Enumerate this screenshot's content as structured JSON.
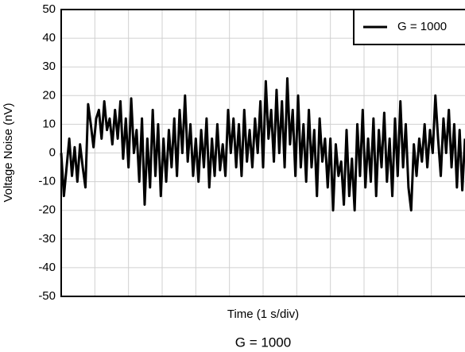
{
  "chart_data": {
    "type": "line",
    "xlabel": "Time (1 s/div)",
    "ylabel": "Voltage Noise (nV)",
    "caption": "G = 1000",
    "xlim": [
      0,
      150
    ],
    "xticks": [
      12.5,
      25,
      37.5,
      50,
      62.5,
      75,
      87.5,
      100,
      112.5,
      125,
      137.5
    ],
    "ylim": [
      -50,
      50
    ],
    "yticks": [
      -50,
      -40,
      -30,
      -20,
      -10,
      0,
      10,
      20,
      30,
      40,
      50
    ],
    "grid": true,
    "legend": "top-right",
    "x": [
      0,
      1,
      2,
      3,
      4,
      5,
      6,
      7,
      8,
      9,
      10,
      11,
      12,
      13,
      14,
      15,
      16,
      17,
      18,
      19,
      20,
      21,
      22,
      23,
      24,
      25,
      26,
      27,
      28,
      29,
      30,
      31,
      32,
      33,
      34,
      35,
      36,
      37,
      38,
      39,
      40,
      41,
      42,
      43,
      44,
      45,
      46,
      47,
      48,
      49,
      50,
      51,
      52,
      53,
      54,
      55,
      56,
      57,
      58,
      59,
      60,
      61,
      62,
      63,
      64,
      65,
      66,
      67,
      68,
      69,
      70,
      71,
      72,
      73,
      74,
      75,
      76,
      77,
      78,
      79,
      80,
      81,
      82,
      83,
      84,
      85,
      86,
      87,
      88,
      89,
      90,
      91,
      92,
      93,
      94,
      95,
      96,
      97,
      98,
      99,
      100,
      101,
      102,
      103,
      104,
      105,
      106,
      107,
      108,
      109,
      110,
      111,
      112,
      113,
      114,
      115,
      116,
      117,
      118,
      119,
      120,
      121,
      122,
      123,
      124,
      125,
      126,
      127,
      128,
      129,
      130,
      131,
      132,
      133,
      134,
      135,
      136,
      137,
      138,
      139,
      140,
      141,
      142,
      143,
      144,
      145,
      146,
      147,
      148,
      149,
      150
    ],
    "series": [
      {
        "name": "G = 1000",
        "color": "#000000",
        "values": [
          0,
          -15,
          -5,
          5,
          -8,
          2,
          -10,
          3,
          -5,
          -12,
          17,
          10,
          2,
          12,
          15,
          5,
          18,
          8,
          12,
          3,
          15,
          5,
          18,
          -2,
          12,
          -5,
          19,
          0,
          8,
          -10,
          12,
          -18,
          5,
          -12,
          15,
          -8,
          10,
          -15,
          5,
          -10,
          8,
          -5,
          12,
          -8,
          15,
          0,
          20,
          -3,
          10,
          -8,
          5,
          -10,
          8,
          -5,
          12,
          -12,
          5,
          -8,
          10,
          -6,
          3,
          -8,
          15,
          0,
          12,
          -5,
          10,
          -8,
          15,
          -3,
          8,
          -5,
          12,
          0,
          18,
          -5,
          25,
          5,
          15,
          -3,
          22,
          0,
          18,
          -5,
          26,
          3,
          15,
          -8,
          20,
          -5,
          10,
          -10,
          15,
          -5,
          8,
          -15,
          12,
          -3,
          5,
          -12,
          5,
          -20,
          3,
          -8,
          -3,
          -18,
          8,
          -15,
          -2,
          -20,
          10,
          -8,
          15,
          -12,
          5,
          -10,
          12,
          -15,
          8,
          -5,
          14,
          -10,
          5,
          -15,
          12,
          -8,
          18,
          -5,
          10,
          -12,
          -20,
          3,
          -8,
          5,
          -3,
          10,
          -5,
          8,
          0,
          20,
          5,
          -8,
          12,
          0,
          15,
          -5,
          10,
          -12,
          8,
          -13,
          5
        ]
      }
    ]
  }
}
